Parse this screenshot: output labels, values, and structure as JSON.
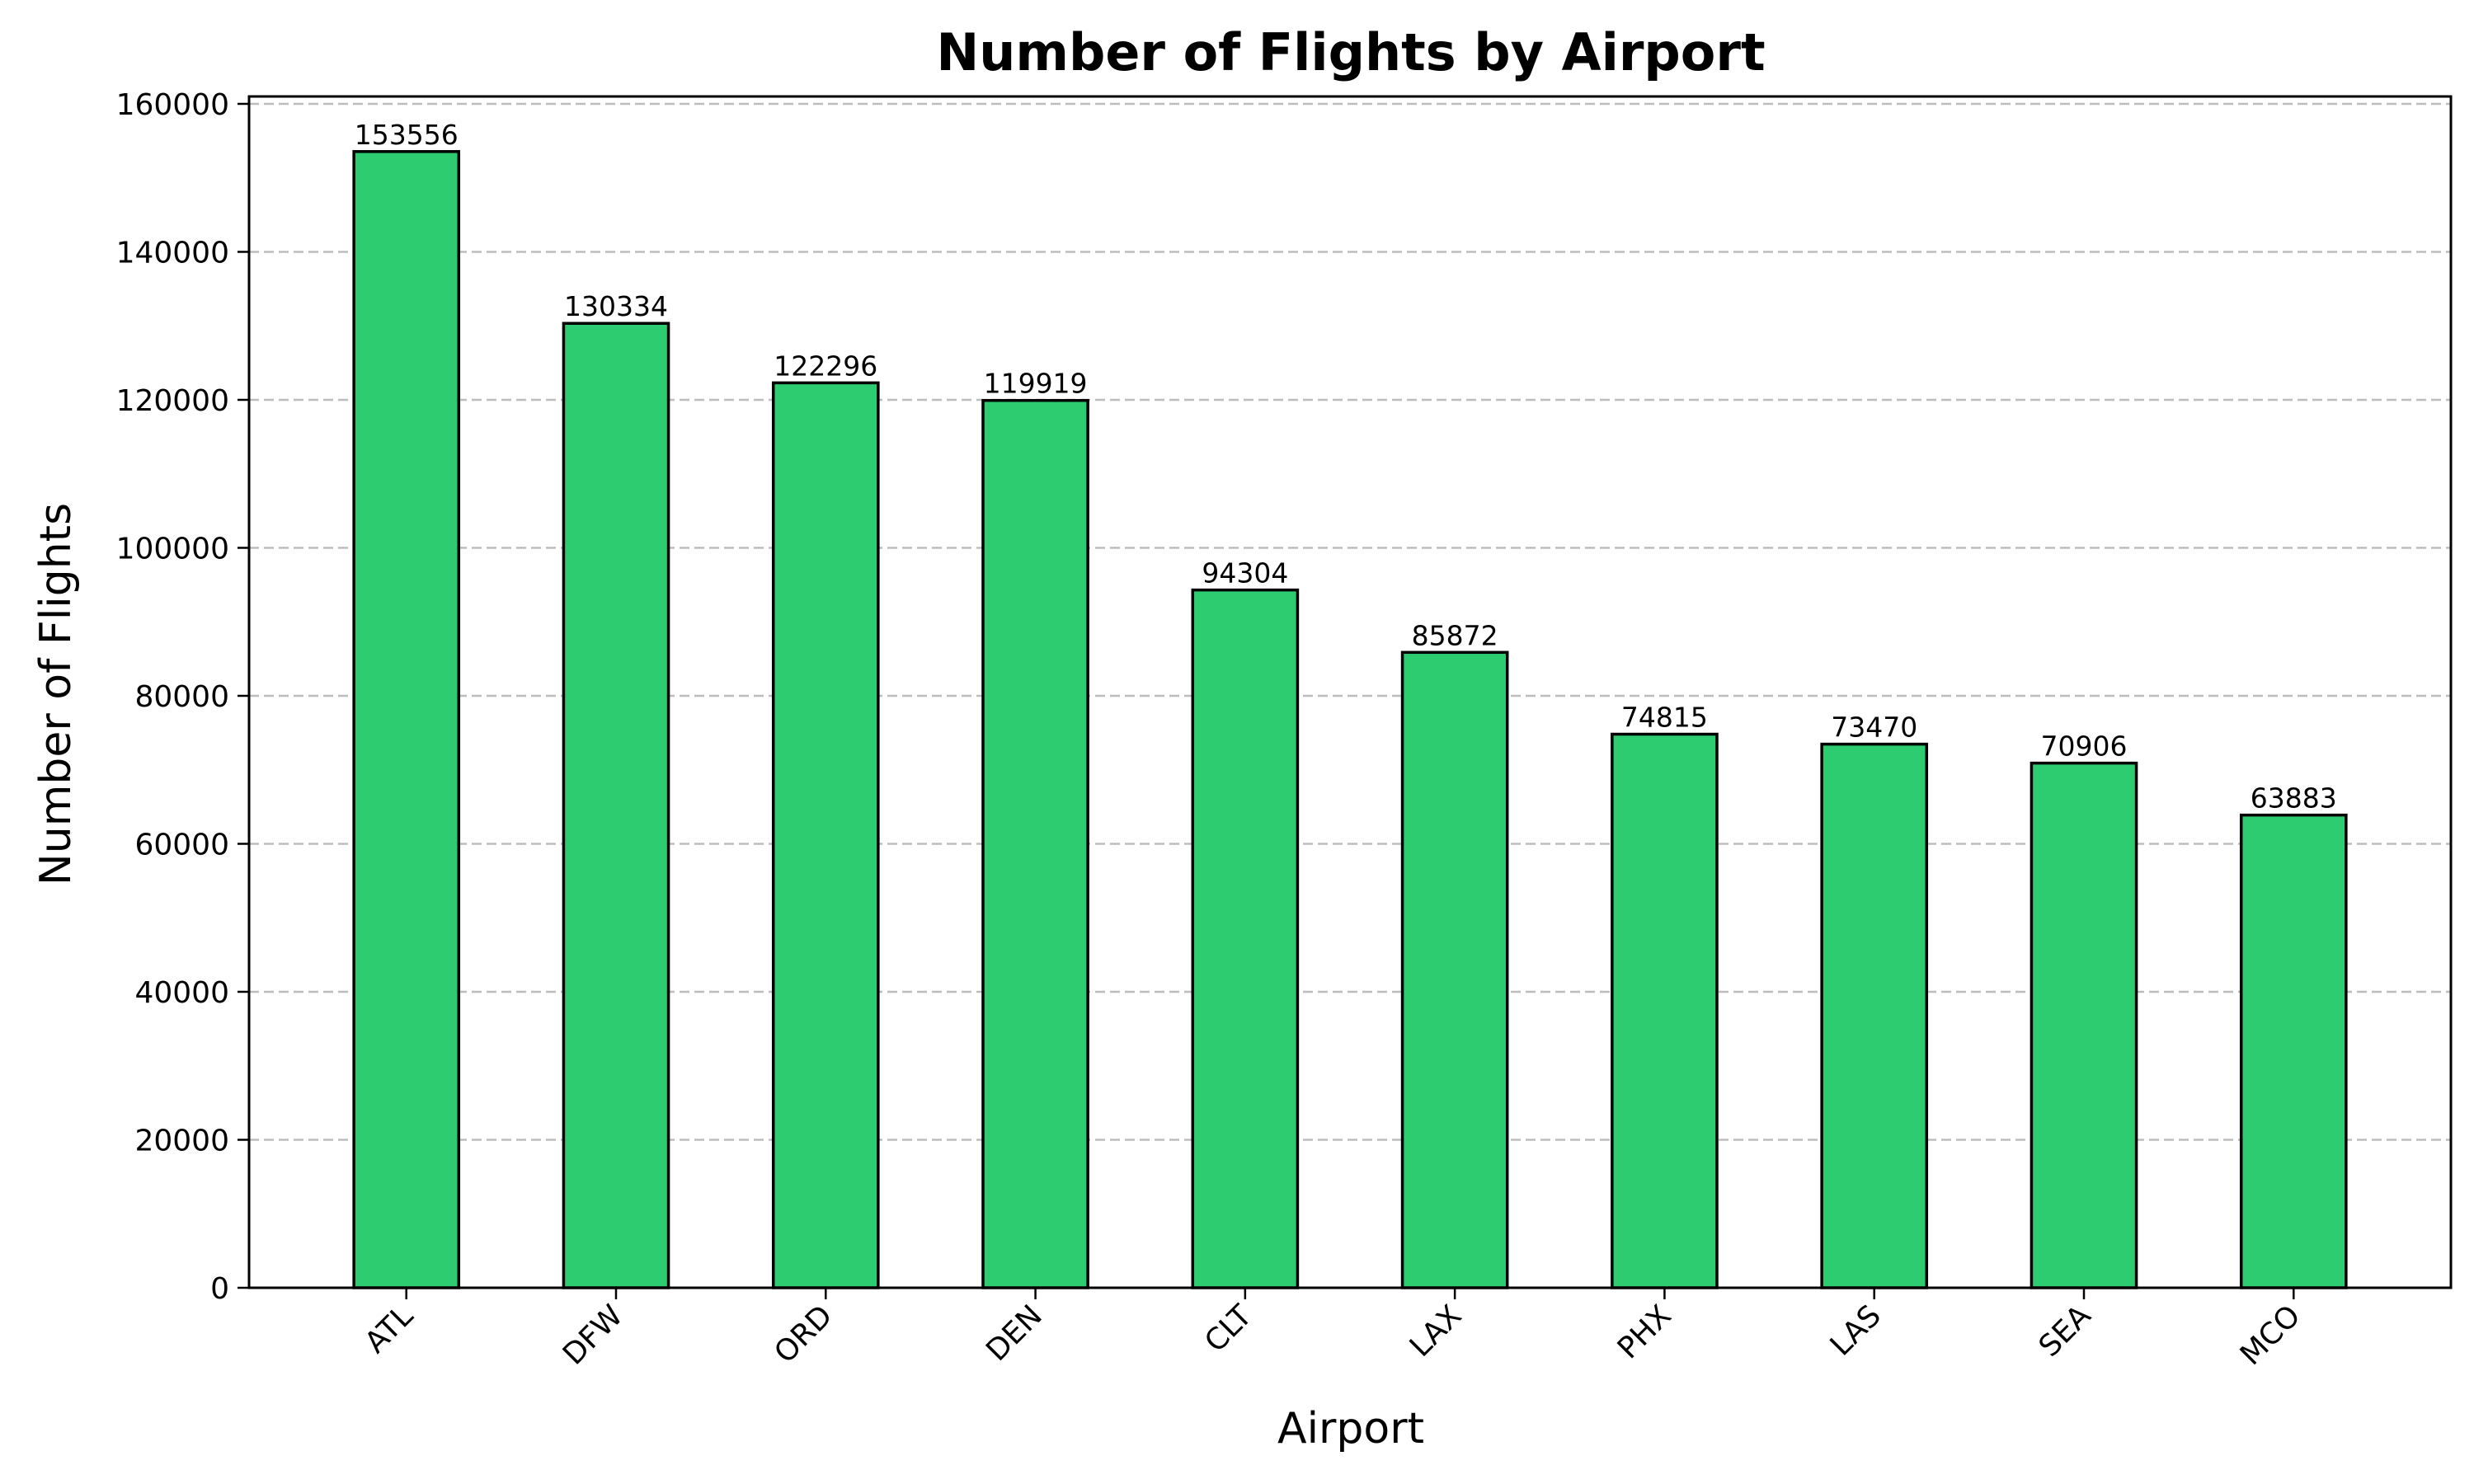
{
  "chart_data": {
    "type": "bar",
    "title": "Number of Flights by Airport",
    "xlabel": "Airport",
    "ylabel": "Number of Flights",
    "categories": [
      "ATL",
      "DFW",
      "ORD",
      "DEN",
      "CLT",
      "LAX",
      "PHX",
      "LAS",
      "SEA",
      "MCO"
    ],
    "values": [
      153556,
      130334,
      122296,
      119919,
      94304,
      85872,
      74815,
      73470,
      70906,
      63883
    ],
    "data_labels": [
      "153556",
      "130334",
      "122296",
      "119919",
      "94304",
      "85872",
      "74815",
      "73470",
      "70906",
      "63883"
    ],
    "ylim": [
      0,
      161000
    ],
    "yticks": [
      0,
      20000,
      40000,
      60000,
      80000,
      100000,
      120000,
      140000,
      160000
    ],
    "ytick_labels": [
      "0",
      "20000",
      "40000",
      "60000",
      "80000",
      "100000",
      "120000",
      "140000",
      "160000"
    ],
    "bar_color": "#2ecc71",
    "edge_color": "#000000",
    "grid": "horizontal dashed",
    "xtick_rotation": "45 degrees"
  }
}
